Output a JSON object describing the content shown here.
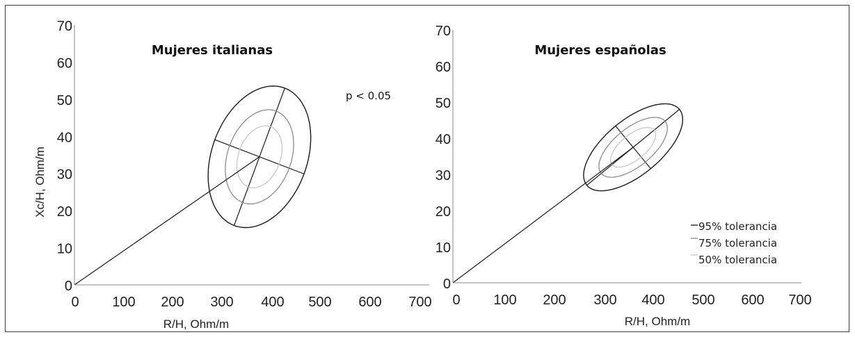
{
  "chart_data": [
    {
      "type": "scatter",
      "title": "Mujeres italianas",
      "xlabel": "R/H, Ohm/m",
      "ylabel": "Xc/H, Ohm/m",
      "xlim": [
        0,
        700
      ],
      "ylim": [
        0,
        70
      ],
      "xticks": [
        "0",
        "100",
        "200",
        "300",
        "400",
        "500",
        "600",
        "700"
      ],
      "yticks": [
        "0",
        "10",
        "20",
        "30",
        "40",
        "50",
        "60",
        "70"
      ],
      "annotation": "p < 0.05",
      "vector_line": {
        "from": [
          0,
          0
        ],
        "to": [
          365,
          34.5
        ]
      },
      "series": [
        {
          "name": "95% tolerancia",
          "center": [
            365,
            34.5
          ],
          "semi_major": [
            50,
            18.5
          ],
          "semi_minor": [
            -88,
            4.6
          ],
          "color": "#1a1a1a"
        },
        {
          "name": "75% tolerancia",
          "center": [
            365,
            34.5
          ],
          "semi_major": [
            33.3,
            12.3
          ],
          "semi_minor": [
            -58.6,
            3.1
          ],
          "color": "#8c8c8c"
        },
        {
          "name": "50% tolerancia",
          "center": [
            365,
            34.5
          ],
          "semi_major": [
            22,
            8.1
          ],
          "semi_minor": [
            -38.7,
            2.0
          ],
          "color": "#c8c8c8"
        }
      ]
    },
    {
      "type": "scatter",
      "title": "Mujeres españolas",
      "xlabel": "R/H, Ohm/m",
      "ylabel": "",
      "xlim": [
        0,
        700
      ],
      "ylim": [
        0,
        70
      ],
      "xticks": [
        "0",
        "100",
        "200",
        "300",
        "400",
        "500",
        "600",
        "700"
      ],
      "yticks": [
        "0",
        "10",
        "20",
        "30",
        "40",
        "50",
        "60",
        "70"
      ],
      "legend_position": "bottom-right",
      "vector_line": {
        "from": [
          0,
          0
        ],
        "to": [
          362,
          37.5
        ]
      },
      "series": [
        {
          "name": "95% tolerancia",
          "center": [
            362,
            37.5
          ],
          "semi_major": [
            93,
            10.5
          ],
          "semi_minor": [
            -35.3,
            5.9
          ],
          "color": "#1a1a1a"
        },
        {
          "name": "75% tolerancia",
          "center": [
            362,
            37.5
          ],
          "semi_major": [
            64.2,
            7.2
          ],
          "semi_minor": [
            -24.4,
            4.1
          ],
          "color": "#8c8c8c"
        },
        {
          "name": "50% tolerancia",
          "center": [
            362,
            37.5
          ],
          "semi_major": [
            42.4,
            4.8
          ],
          "semi_minor": [
            -16.1,
            2.7
          ],
          "color": "#c8c8c8"
        }
      ]
    }
  ]
}
